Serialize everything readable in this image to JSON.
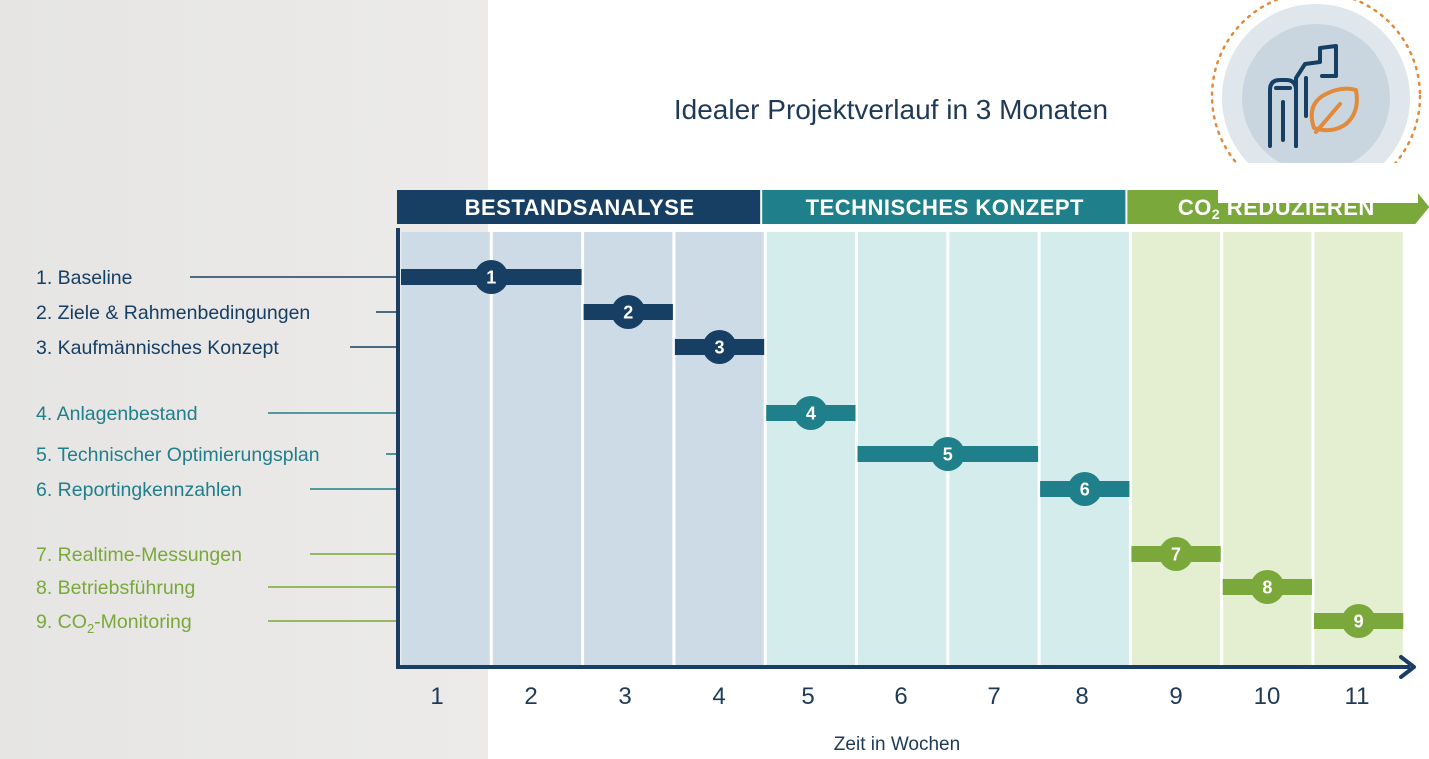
{
  "colors": {
    "navy": "#173e63",
    "teal": "#1f7f8a",
    "green": "#7aa83a",
    "axis": "#1a3d63",
    "text_dark": "#1e3a55",
    "orange": "#e08a3a"
  },
  "icon": "building-leaf-icon",
  "chart_data": {
    "type": "gantt",
    "title": "Idealer Projektverlauf in 3 Monaten",
    "xlabel": "Zeit in Wochen",
    "x_ticks": [
      "1",
      "2",
      "3",
      "4",
      "5",
      "6",
      "7",
      "8",
      "9",
      "10",
      "11"
    ],
    "phases": [
      {
        "label_main": "BESTANDSANALYSE",
        "label_sub": "",
        "label_tail": "",
        "start_week": 1,
        "end_week": 4,
        "color": "#173e63"
      },
      {
        "label_main": "TECHNISCHES KONZEPT",
        "label_sub": "",
        "label_tail": "",
        "start_week": 5,
        "end_week": 8,
        "color": "#1f7f8a"
      },
      {
        "label_main": "CO",
        "label_sub": "2",
        "label_tail": " REDUZIEREN",
        "start_week": 9,
        "end_week": 11,
        "color": "#7aa83a"
      }
    ],
    "tasks": [
      {
        "number": "1",
        "label": "1. Baseline",
        "start_week": 1,
        "end_week": 2,
        "phase": 0
      },
      {
        "number": "2",
        "label": "2. Ziele & Rahmenbedingungen",
        "start_week": 3,
        "end_week": 3,
        "phase": 0
      },
      {
        "number": "3",
        "label": "3. Kaufmännisches Konzept",
        "start_week": 4,
        "end_week": 4,
        "phase": 0
      },
      {
        "number": "4",
        "label": "4. Anlagenbestand",
        "start_week": 5,
        "end_week": 5,
        "phase": 1
      },
      {
        "number": "5",
        "label": "5. Technischer Optimierungsplan",
        "start_week": 6,
        "end_week": 7,
        "phase": 1
      },
      {
        "number": "6",
        "label": "6. Reportingkennzahlen",
        "start_week": 8,
        "end_week": 8,
        "phase": 1
      },
      {
        "number": "7",
        "label": "7. Realtime-Messungen",
        "start_week": 9,
        "end_week": 9,
        "phase": 2
      },
      {
        "number": "8",
        "label": "8. Betriebsführung",
        "start_week": 10,
        "end_week": 10,
        "phase": 2
      },
      {
        "number": "9",
        "label_pre": "9. CO",
        "label_sub": "2",
        "label_post": "-Monitoring",
        "start_week": 11,
        "end_week": 11,
        "phase": 2
      }
    ]
  }
}
